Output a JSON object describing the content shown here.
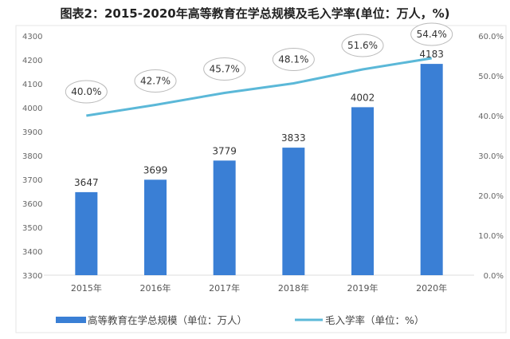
{
  "title": "图表2：2015-2020年高等教育在学总规模及毛入学率(单位：万人，%)",
  "chart_data": {
    "type": "bar+line",
    "categories": [
      "2015年",
      "2016年",
      "2017年",
      "2018年",
      "2019年",
      "2020年"
    ],
    "series": [
      {
        "name": "高等教育在学总规模（单位：万人）",
        "type": "bar",
        "axis": "left",
        "color": "#3a7fd5",
        "values": [
          3647,
          3699,
          3779,
          3833,
          4002,
          4183
        ],
        "labels": [
          "3647",
          "3699",
          "3779",
          "3833",
          "4002",
          "4183"
        ]
      },
      {
        "name": "毛入学率（单位：%）",
        "type": "line",
        "axis": "right",
        "color": "#5bb8d8",
        "values": [
          40.0,
          42.7,
          45.7,
          48.1,
          51.6,
          54.4
        ],
        "labels": [
          "40.0%",
          "42.7%",
          "45.7%",
          "48.1%",
          "51.6%",
          "54.4%"
        ]
      }
    ],
    "left_axis": {
      "ylim": [
        3300,
        4300
      ],
      "ticks": [
        "3300",
        "3400",
        "3500",
        "3600",
        "3700",
        "3800",
        "3900",
        "4000",
        "4100",
        "4200",
        "4300"
      ]
    },
    "right_axis": {
      "ylim": [
        0,
        60
      ],
      "ticks": [
        "0.0%",
        "10.0%",
        "20.0%",
        "30.0%",
        "40.0%",
        "50.0%",
        "60.0%"
      ]
    },
    "grid": false,
    "legend_placement": "bottom"
  }
}
